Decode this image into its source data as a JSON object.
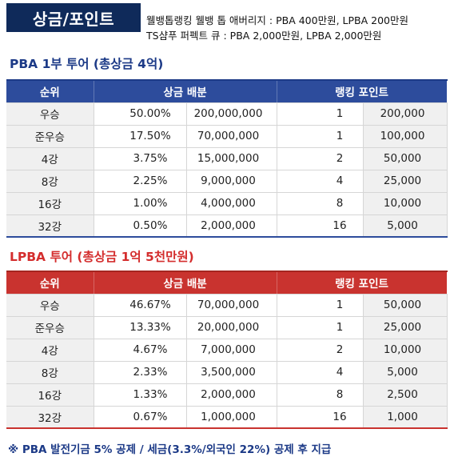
{
  "header": {
    "badge": "상금/포인트",
    "notes": [
      "웰뱅톱랭킹 웰뱅 톱 애버리지 : PBA 400만원, LPBA 200만원",
      "TS샴푸 퍼펙트 큐 : PBA 2,000만원, LPBA 2,000만원"
    ]
  },
  "columns": {
    "rank": "순위",
    "prize": "상금 배분",
    "points": "랭킹 포인트"
  },
  "pba": {
    "title": "PBA 1부 투어 (총상금 4억)",
    "rows": [
      {
        "rank": "우승",
        "pct": "50.00%",
        "amount": "200,000,000",
        "ranking": "1",
        "points": "200,000"
      },
      {
        "rank": "준우승",
        "pct": "17.50%",
        "amount": "70,000,000",
        "ranking": "1",
        "points": "100,000"
      },
      {
        "rank": "4강",
        "pct": "3.75%",
        "amount": "15,000,000",
        "ranking": "2",
        "points": "50,000"
      },
      {
        "rank": "8강",
        "pct": "2.25%",
        "amount": "9,000,000",
        "ranking": "4",
        "points": "25,000"
      },
      {
        "rank": "16강",
        "pct": "1.00%",
        "amount": "4,000,000",
        "ranking": "8",
        "points": "10,000"
      },
      {
        "rank": "32강",
        "pct": "0.50%",
        "amount": "2,000,000",
        "ranking": "16",
        "points": "5,000"
      }
    ]
  },
  "lpba": {
    "title": "LPBA 투어 (총상금 1억 5천만원)",
    "rows": [
      {
        "rank": "우승",
        "pct": "46.67%",
        "amount": "70,000,000",
        "ranking": "1",
        "points": "50,000"
      },
      {
        "rank": "준우승",
        "pct": "13.33%",
        "amount": "20,000,000",
        "ranking": "1",
        "points": "25,000"
      },
      {
        "rank": "4강",
        "pct": "4.67%",
        "amount": "7,000,000",
        "ranking": "2",
        "points": "10,000"
      },
      {
        "rank": "8강",
        "pct": "2.33%",
        "amount": "3,500,000",
        "ranking": "4",
        "points": "5,000"
      },
      {
        "rank": "16강",
        "pct": "1.33%",
        "amount": "2,000,000",
        "ranking": "8",
        "points": "2,500"
      },
      {
        "rank": "32강",
        "pct": "0.67%",
        "amount": "1,000,000",
        "ranking": "16",
        "points": "1,000"
      }
    ]
  },
  "footnote": "※ PBA 발전기금 5% 공제  / 세금(3.3%/외국인 22%) 공제 후 지급"
}
